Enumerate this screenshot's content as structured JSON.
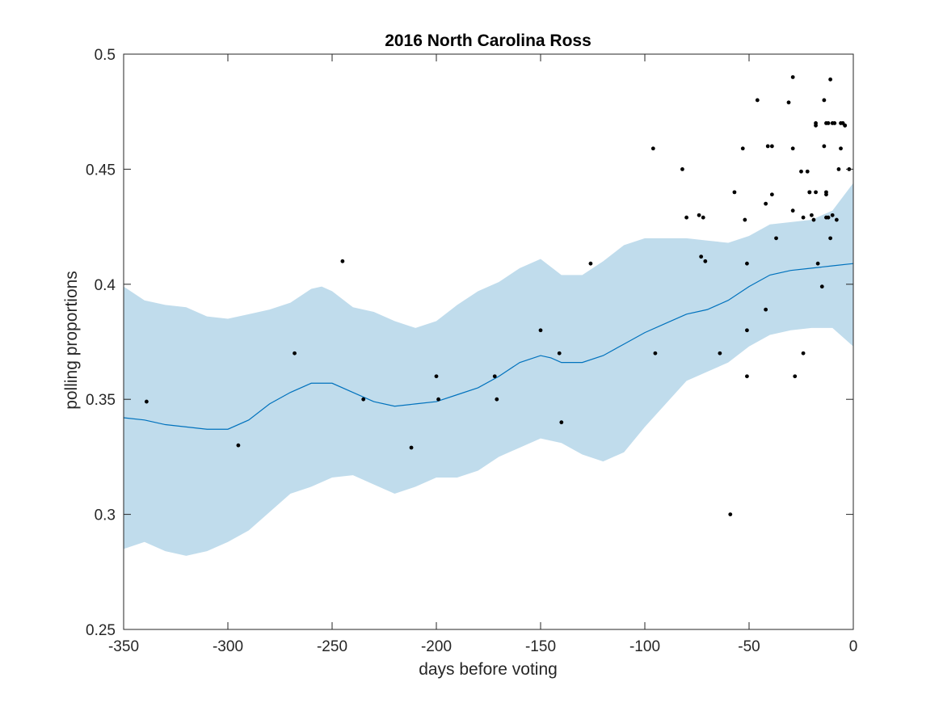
{
  "chart_data": {
    "type": "scatter",
    "title": "2016 North Carolina Ross",
    "xlabel": "days before voting",
    "ylabel": "polling proportions",
    "xlim": [
      -350,
      0
    ],
    "ylim": [
      0.25,
      0.5
    ],
    "xticks": [
      -350,
      -300,
      -250,
      -200,
      -150,
      -100,
      -50,
      0
    ],
    "yticks": [
      0.25,
      0.3,
      0.35,
      0.4,
      0.45,
      0.5
    ],
    "xtick_labels": [
      "-350",
      "-300",
      "-250",
      "-200",
      "-150",
      "-100",
      "-50",
      "0"
    ],
    "ytick_labels": [
      "0.25",
      "0.3",
      "0.35",
      "0.4",
      "0.45",
      "0.5"
    ],
    "grid": false,
    "colors": {
      "band": "#c0dcec",
      "trend_line": "#0072bd",
      "points": "#000000",
      "axes": "#262626"
    },
    "series": [
      {
        "kind": "scatter",
        "points": [
          [
            -339,
            0.349
          ],
          [
            -295,
            0.33
          ],
          [
            -268,
            0.37
          ],
          [
            -245,
            0.41
          ],
          [
            -235,
            0.35
          ],
          [
            -212,
            0.329
          ],
          [
            -200,
            0.36
          ],
          [
            -199,
            0.35
          ],
          [
            -172,
            0.36
          ],
          [
            -171,
            0.35
          ],
          [
            -150,
            0.38
          ],
          [
            -141,
            0.37
          ],
          [
            -140,
            0.34
          ],
          [
            -126,
            0.409
          ],
          [
            -96,
            0.459
          ],
          [
            -95,
            0.37
          ],
          [
            -82,
            0.45
          ],
          [
            -80,
            0.429
          ],
          [
            -74,
            0.43
          ],
          [
            -73,
            0.412
          ],
          [
            -72,
            0.429
          ],
          [
            -71,
            0.41
          ],
          [
            -64,
            0.37
          ],
          [
            -59,
            0.3
          ],
          [
            -57,
            0.44
          ],
          [
            -53,
            0.459
          ],
          [
            -52,
            0.428
          ],
          [
            -51,
            0.409
          ],
          [
            -51,
            0.38
          ],
          [
            -51,
            0.36
          ],
          [
            -46,
            0.48
          ],
          [
            -42,
            0.389
          ],
          [
            -42,
            0.435
          ],
          [
            -41,
            0.46
          ],
          [
            -39,
            0.46
          ],
          [
            -39,
            0.439
          ],
          [
            -37,
            0.42
          ],
          [
            -31,
            0.479
          ],
          [
            -29,
            0.49
          ],
          [
            -29,
            0.459
          ],
          [
            -29,
            0.432
          ],
          [
            -28,
            0.36
          ],
          [
            -25,
            0.449
          ],
          [
            -24,
            0.429
          ],
          [
            -24,
            0.37
          ],
          [
            -22,
            0.449
          ],
          [
            -21,
            0.44
          ],
          [
            -21,
            0.44
          ],
          [
            -20,
            0.43
          ],
          [
            -19,
            0.428
          ],
          [
            -18,
            0.47
          ],
          [
            -18,
            0.469
          ],
          [
            -18,
            0.44
          ],
          [
            -17,
            0.409
          ],
          [
            -15,
            0.399
          ],
          [
            -14,
            0.48
          ],
          [
            -14,
            0.46
          ],
          [
            -13,
            0.47
          ],
          [
            -13,
            0.44
          ],
          [
            -13,
            0.439
          ],
          [
            -13,
            0.429
          ],
          [
            -12,
            0.47
          ],
          [
            -12,
            0.429
          ],
          [
            -11,
            0.489
          ],
          [
            -11,
            0.42
          ],
          [
            -10,
            0.47
          ],
          [
            -10,
            0.43
          ],
          [
            -9,
            0.47
          ],
          [
            -8,
            0.428
          ],
          [
            -7,
            0.45
          ],
          [
            -6,
            0.47
          ],
          [
            -6,
            0.459
          ],
          [
            -5,
            0.47
          ],
          [
            -4,
            0.469
          ],
          [
            -4,
            0.469
          ],
          [
            -2,
            0.45
          ]
        ]
      },
      {
        "kind": "line",
        "points": [
          [
            -350,
            0.342
          ],
          [
            -340,
            0.341
          ],
          [
            -330,
            0.339
          ],
          [
            -320,
            0.338
          ],
          [
            -310,
            0.337
          ],
          [
            -300,
            0.337
          ],
          [
            -290,
            0.341
          ],
          [
            -280,
            0.348
          ],
          [
            -270,
            0.353
          ],
          [
            -260,
            0.357
          ],
          [
            -250,
            0.357
          ],
          [
            -240,
            0.353
          ],
          [
            -230,
            0.349
          ],
          [
            -220,
            0.347
          ],
          [
            -210,
            0.348
          ],
          [
            -200,
            0.349
          ],
          [
            -190,
            0.352
          ],
          [
            -180,
            0.355
          ],
          [
            -170,
            0.36
          ],
          [
            -160,
            0.366
          ],
          [
            -150,
            0.369
          ],
          [
            -145,
            0.368
          ],
          [
            -140,
            0.366
          ],
          [
            -130,
            0.366
          ],
          [
            -120,
            0.369
          ],
          [
            -110,
            0.374
          ],
          [
            -100,
            0.379
          ],
          [
            -90,
            0.383
          ],
          [
            -80,
            0.387
          ],
          [
            -70,
            0.389
          ],
          [
            -60,
            0.393
          ],
          [
            -50,
            0.399
          ],
          [
            -40,
            0.404
          ],
          [
            -30,
            0.406
          ],
          [
            -20,
            0.407
          ],
          [
            -10,
            0.408
          ],
          [
            0,
            0.409
          ]
        ]
      },
      {
        "kind": "band",
        "upper": [
          [
            -350,
            0.399
          ],
          [
            -340,
            0.393
          ],
          [
            -330,
            0.391
          ],
          [
            -320,
            0.39
          ],
          [
            -310,
            0.386
          ],
          [
            -300,
            0.385
          ],
          [
            -290,
            0.387
          ],
          [
            -280,
            0.389
          ],
          [
            -270,
            0.392
          ],
          [
            -260,
            0.398
          ],
          [
            -255,
            0.399
          ],
          [
            -250,
            0.397
          ],
          [
            -240,
            0.39
          ],
          [
            -230,
            0.388
          ],
          [
            -220,
            0.384
          ],
          [
            -210,
            0.381
          ],
          [
            -200,
            0.384
          ],
          [
            -190,
            0.391
          ],
          [
            -180,
            0.397
          ],
          [
            -170,
            0.401
          ],
          [
            -160,
            0.407
          ],
          [
            -150,
            0.411
          ],
          [
            -140,
            0.404
          ],
          [
            -130,
            0.404
          ],
          [
            -120,
            0.41
          ],
          [
            -110,
            0.417
          ],
          [
            -100,
            0.42
          ],
          [
            -90,
            0.42
          ],
          [
            -80,
            0.42
          ],
          [
            -70,
            0.419
          ],
          [
            -60,
            0.418
          ],
          [
            -50,
            0.421
          ],
          [
            -40,
            0.426
          ],
          [
            -30,
            0.427
          ],
          [
            -20,
            0.428
          ],
          [
            -10,
            0.432
          ],
          [
            0,
            0.444
          ]
        ],
        "lower": [
          [
            -350,
            0.285
          ],
          [
            -340,
            0.288
          ],
          [
            -330,
            0.284
          ],
          [
            -320,
            0.282
          ],
          [
            -310,
            0.284
          ],
          [
            -300,
            0.288
          ],
          [
            -290,
            0.293
          ],
          [
            -280,
            0.301
          ],
          [
            -270,
            0.309
          ],
          [
            -260,
            0.312
          ],
          [
            -250,
            0.316
          ],
          [
            -240,
            0.317
          ],
          [
            -230,
            0.313
          ],
          [
            -220,
            0.309
          ],
          [
            -210,
            0.312
          ],
          [
            -200,
            0.316
          ],
          [
            -190,
            0.316
          ],
          [
            -180,
            0.319
          ],
          [
            -170,
            0.325
          ],
          [
            -160,
            0.329
          ],
          [
            -150,
            0.333
          ],
          [
            -140,
            0.331
          ],
          [
            -130,
            0.326
          ],
          [
            -120,
            0.323
          ],
          [
            -110,
            0.327
          ],
          [
            -100,
            0.338
          ],
          [
            -90,
            0.348
          ],
          [
            -80,
            0.358
          ],
          [
            -70,
            0.362
          ],
          [
            -60,
            0.366
          ],
          [
            -50,
            0.373
          ],
          [
            -40,
            0.378
          ],
          [
            -30,
            0.38
          ],
          [
            -20,
            0.381
          ],
          [
            -10,
            0.381
          ],
          [
            0,
            0.373
          ]
        ]
      }
    ]
  }
}
